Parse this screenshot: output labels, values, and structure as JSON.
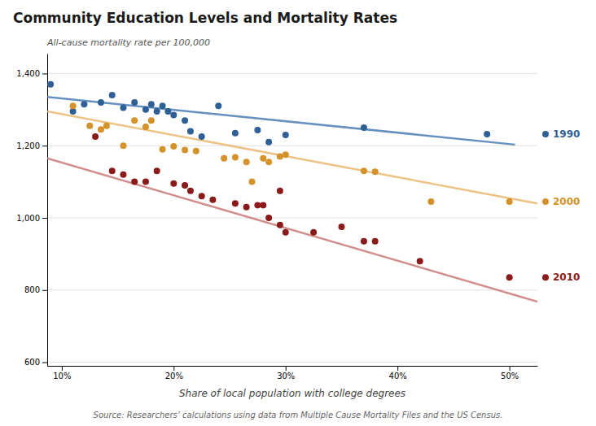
{
  "chart_data": {
    "type": "scatter",
    "title": "Community Education Levels and Mortality Rates",
    "y_label": "All-cause mortality rate per 100,000",
    "x_label": "Share of local population with college degrees",
    "source": "Source: Researchers’ calculations using data from Multiple Cause Mortality Files and the US Census.",
    "xlim": [
      0.087,
      0.525
    ],
    "ylim": [
      590,
      1455
    ],
    "xticks": [
      {
        "value": 0.1,
        "label": "10%"
      },
      {
        "value": 0.2,
        "label": "20%"
      },
      {
        "value": 0.3,
        "label": "30%"
      },
      {
        "value": 0.4,
        "label": "40%"
      },
      {
        "value": 0.5,
        "label": "50%"
      }
    ],
    "yticks": [
      600,
      800,
      {
        "value": 1000,
        "label": "1,000"
      },
      {
        "value": 1200,
        "label": "1,200"
      },
      {
        "value": 1400,
        "label": "1,400"
      }
    ],
    "grid": true,
    "series": [
      {
        "name": "1990",
        "color": "#2e6096",
        "x": [
          0.09,
          0.11,
          0.12,
          0.135,
          0.145,
          0.155,
          0.165,
          0.175,
          0.18,
          0.185,
          0.19,
          0.195,
          0.2,
          0.21,
          0.215,
          0.225,
          0.24,
          0.255,
          0.275,
          0.285,
          0.3,
          0.37,
          0.48
        ],
        "values": [
          1370,
          1295,
          1315,
          1320,
          1340,
          1305,
          1320,
          1300,
          1315,
          1295,
          1310,
          1295,
          1285,
          1270,
          1240,
          1225,
          1310,
          1235,
          1243,
          1210,
          1230,
          1250,
          1232
        ],
        "trend": {
          "color": "#4a7db5",
          "x": [
            0.087,
            0.505
          ],
          "values": [
            1335,
            1203
          ]
        }
      },
      {
        "name": "2000",
        "color": "#d4922a",
        "x": [
          0.11,
          0.125,
          0.135,
          0.14,
          0.155,
          0.165,
          0.175,
          0.18,
          0.19,
          0.2,
          0.21,
          0.22,
          0.245,
          0.255,
          0.265,
          0.27,
          0.28,
          0.285,
          0.295,
          0.3,
          0.37,
          0.38,
          0.43,
          0.5
        ],
        "values": [
          1310,
          1255,
          1245,
          1255,
          1200,
          1270,
          1252,
          1270,
          1190,
          1198,
          1188,
          1185,
          1165,
          1168,
          1155,
          1100,
          1165,
          1155,
          1170,
          1175,
          1130,
          1128,
          1045,
          1045
        ],
        "trend": {
          "color": "#e8b870",
          "x": [
            0.087,
            0.525
          ],
          "values": [
            1295,
            1040
          ]
        }
      },
      {
        "name": "2010",
        "color": "#8b1a1a",
        "x": [
          0.13,
          0.145,
          0.155,
          0.165,
          0.175,
          0.185,
          0.2,
          0.21,
          0.215,
          0.225,
          0.235,
          0.255,
          0.265,
          0.275,
          0.28,
          0.285,
          0.295,
          0.3,
          0.295,
          0.325,
          0.35,
          0.37,
          0.38,
          0.42,
          0.5
        ],
        "values": [
          1225,
          1130,
          1120,
          1100,
          1100,
          1130,
          1095,
          1090,
          1075,
          1060,
          1050,
          1040,
          1030,
          1035,
          1035,
          1000,
          980,
          960,
          1075,
          960,
          975,
          935,
          935,
          880,
          835
        ],
        "trend": {
          "color": "#c97878",
          "x": [
            0.087,
            0.525
          ],
          "values": [
            1165,
            768
          ]
        }
      }
    ]
  }
}
